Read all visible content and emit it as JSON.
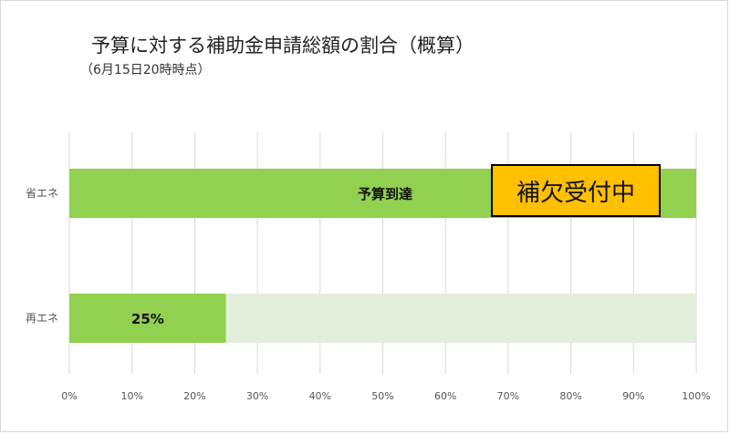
{
  "chart_data": {
    "type": "bar",
    "orientation": "horizontal",
    "stacked": true,
    "title": "予算に対する補助金申請総額の割合（概算）",
    "subtitle": "（6月15日20時時点）",
    "categories": [
      "省エネ",
      "再エネ"
    ],
    "series": [
      {
        "values": [
          100,
          25
        ],
        "color": "#92d050"
      },
      {
        "values": [
          0,
          75
        ],
        "color": "#e2efda"
      }
    ],
    "data_labels": [
      "予算到達",
      "25%"
    ],
    "callout": {
      "category": "省エネ",
      "text": "補欠受付中",
      "color": "#ffc000"
    },
    "x_ticks": [
      "0%",
      "10%",
      "20%",
      "30%",
      "40%",
      "50%",
      "60%",
      "70%",
      "80%",
      "90%",
      "100%"
    ],
    "xlim": [
      0,
      100
    ],
    "grid": true,
    "legend": "none"
  }
}
